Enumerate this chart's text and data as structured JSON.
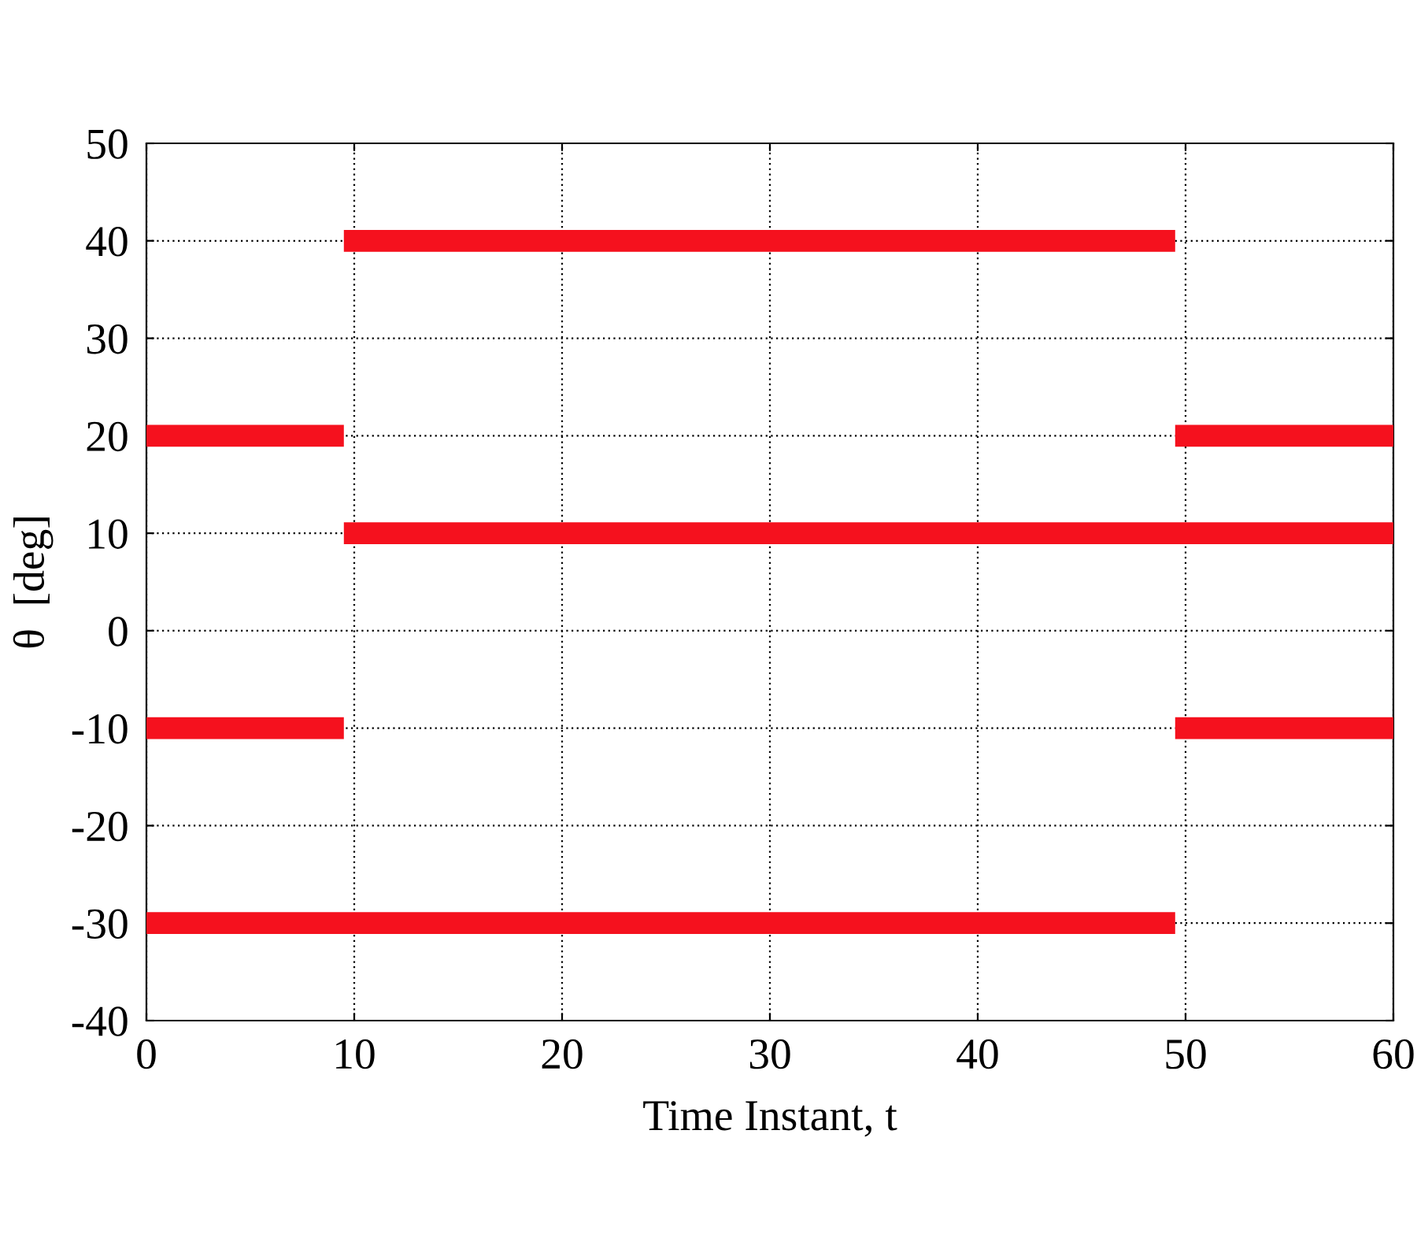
{
  "chart_data": {
    "type": "line",
    "xlabel": "Time Instant, t",
    "ylabel": "θ  [deg]",
    "xlim": [
      0,
      60
    ],
    "ylim": [
      -40,
      50
    ],
    "xticks": [
      0,
      10,
      20,
      30,
      40,
      50,
      60
    ],
    "yticks": [
      -40,
      -30,
      -20,
      -10,
      0,
      10,
      20,
      30,
      40,
      50
    ],
    "grid": true,
    "line_style": "solid",
    "series": [
      {
        "color": "#f5111e",
        "x": [
          9.5,
          49.5
        ],
        "values": [
          40,
          40
        ]
      },
      {
        "color": "#f5111e",
        "x": [
          0,
          9.5
        ],
        "values": [
          20,
          20
        ]
      },
      {
        "color": "#f5111e",
        "x": [
          49.5,
          60
        ],
        "values": [
          20,
          20
        ]
      },
      {
        "color": "#f5111e",
        "x": [
          9.5,
          60
        ],
        "values": [
          10,
          10
        ]
      },
      {
        "color": "#f5111e",
        "x": [
          0,
          9.5
        ],
        "values": [
          -10,
          -10
        ]
      },
      {
        "color": "#f5111e",
        "x": [
          49.5,
          60
        ],
        "values": [
          -10,
          -10
        ]
      },
      {
        "color": "#f5111e",
        "x": [
          0,
          49.5
        ],
        "values": [
          -30,
          -30
        ]
      }
    ]
  }
}
